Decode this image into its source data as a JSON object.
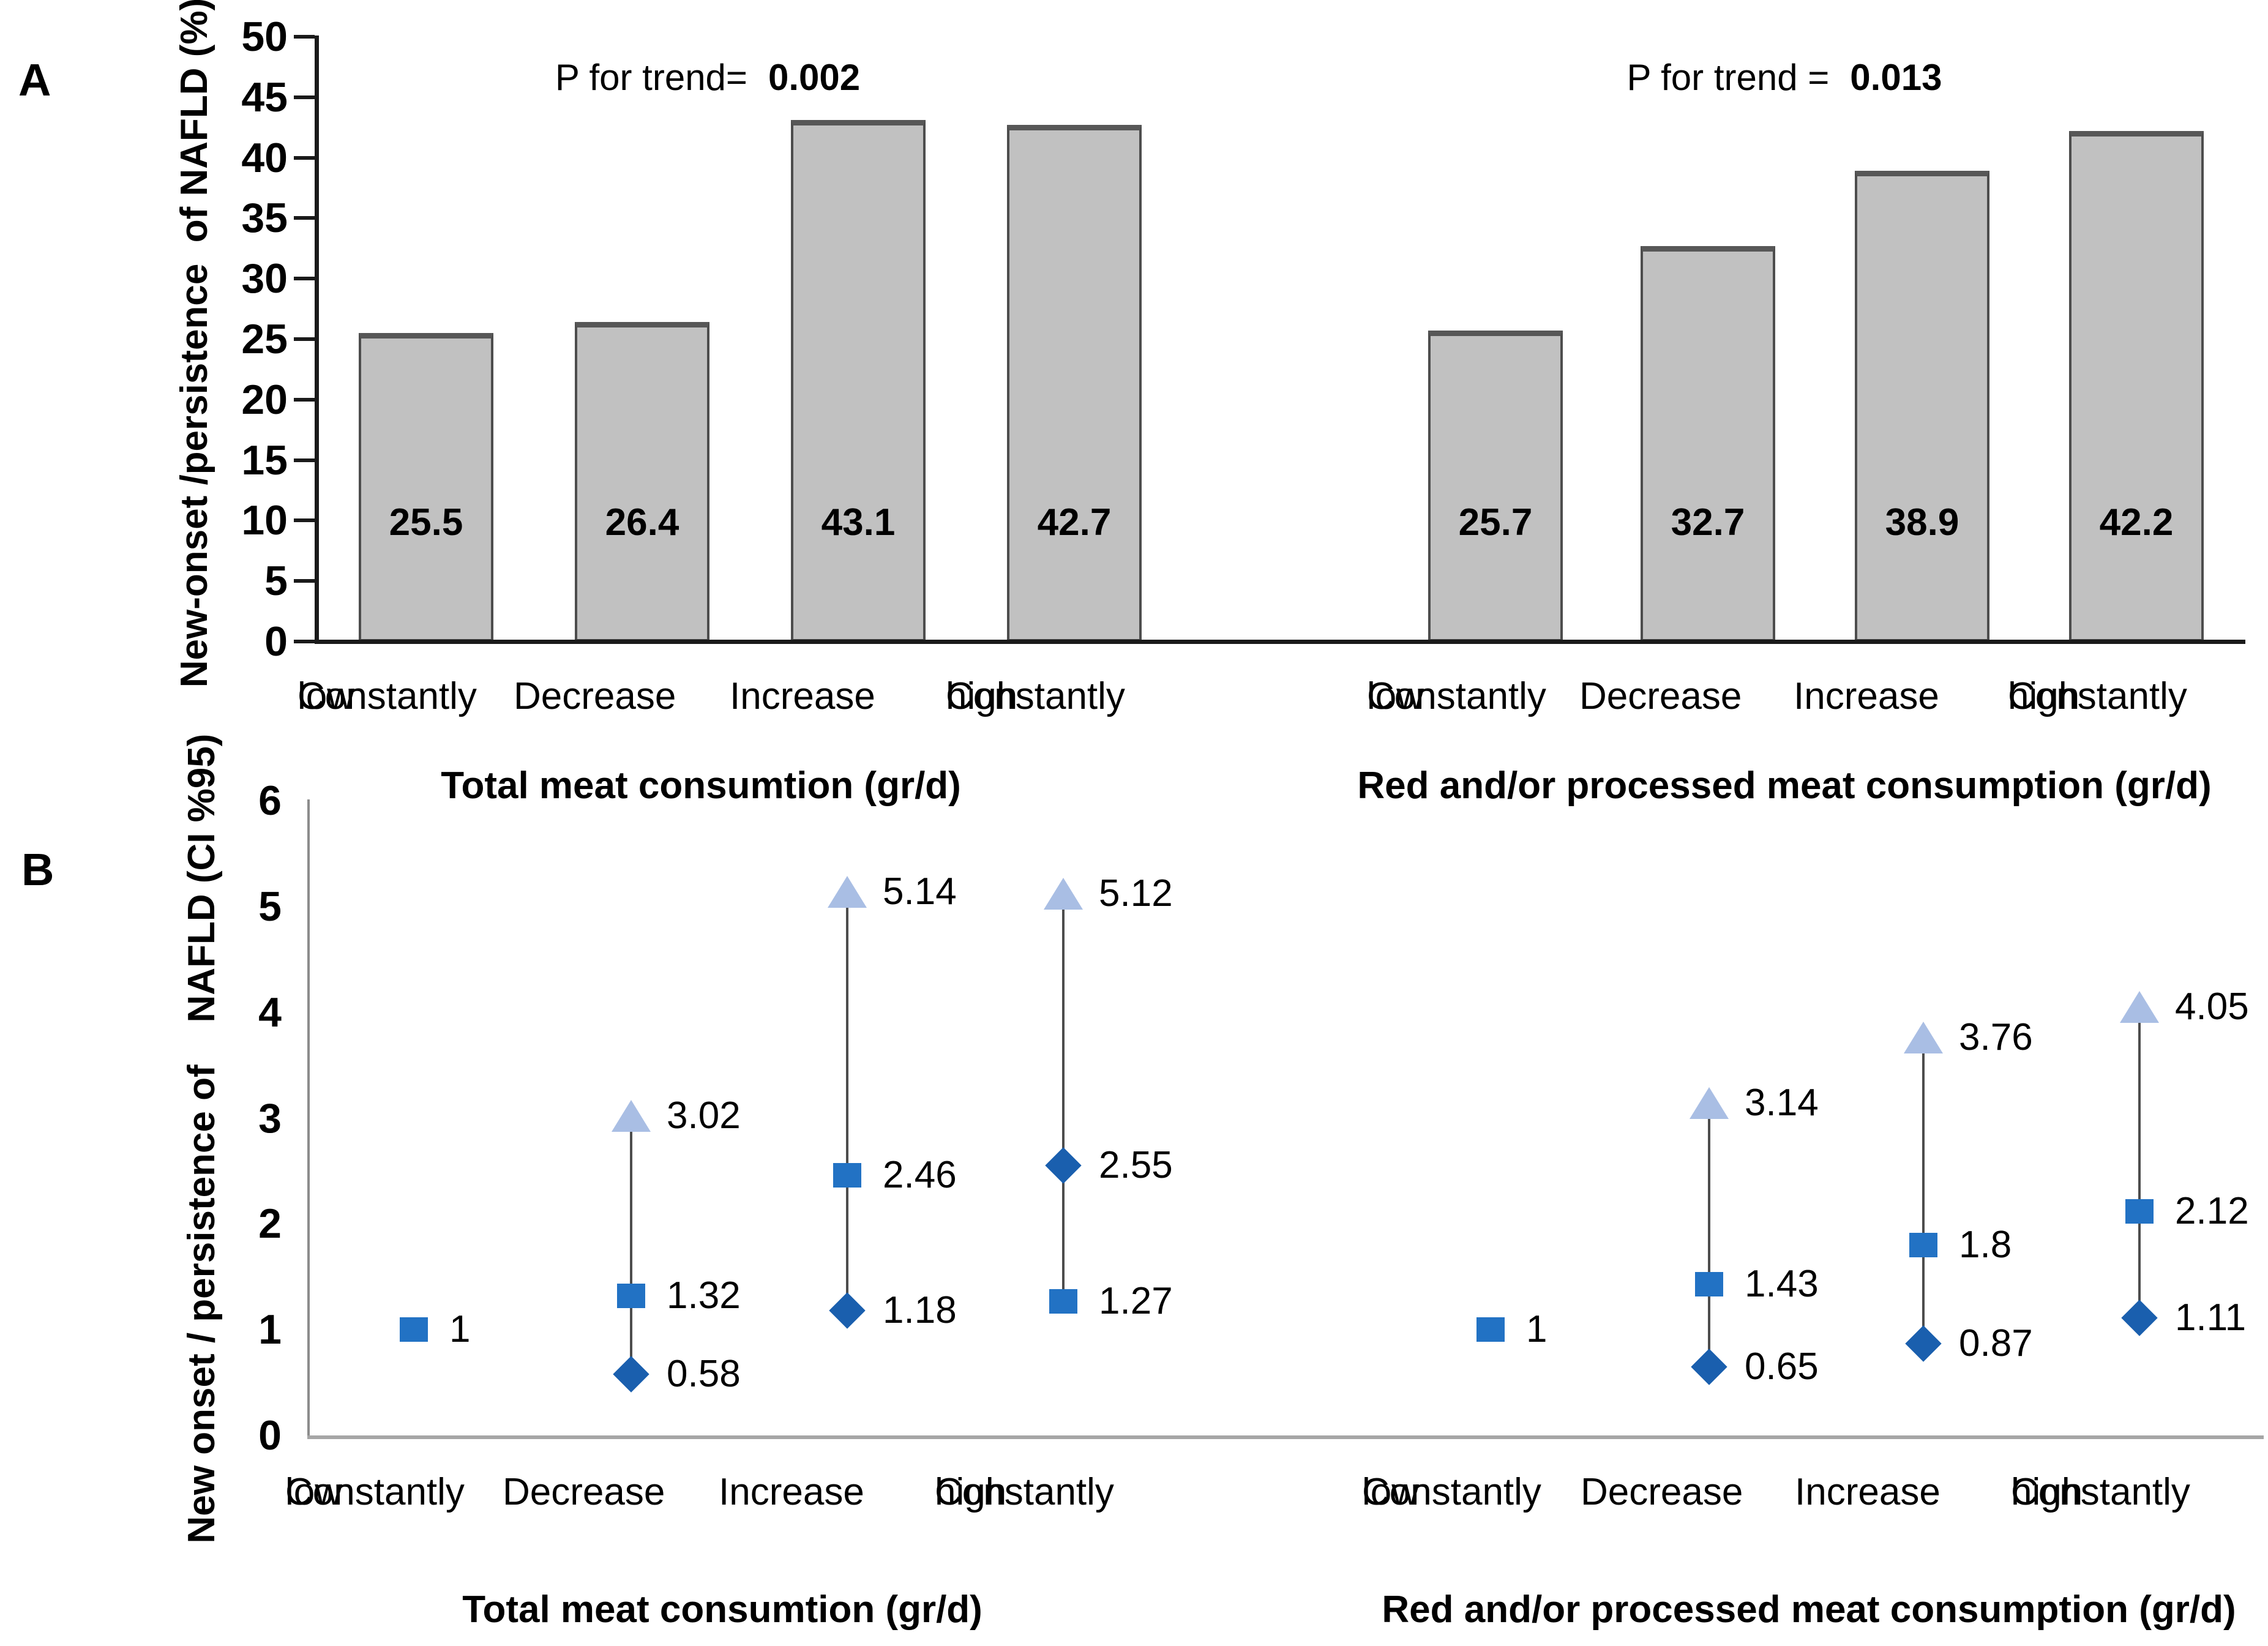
{
  "panel_labels": {
    "a": "A",
    "b": "B"
  },
  "axes": {
    "a_ticks": [
      0,
      5,
      10,
      15,
      20,
      25,
      30,
      35,
      40,
      45,
      50
    ],
    "b_ticks": [
      0,
      1,
      2,
      3,
      4,
      5,
      6
    ]
  },
  "colors": {
    "bar_fill": "#c1c1c1",
    "bar_border": "#4d4d4d",
    "square": "#2272C4",
    "diamond": "#1A5FAE",
    "triangle": "#A9BEE4",
    "ci_line": "#4d4d4d",
    "axis_black": "#1a1a1a",
    "axis_gray": "#9a9a9a",
    "baseline_gray": "#a6a6a6"
  },
  "chart_data": [
    {
      "type": "bar",
      "panel": "A",
      "p_label": "P for trend=",
      "p_value": "0.002",
      "title": "",
      "xlabel": "Total meat consumtion (gr/d)",
      "ylabel": "New-onset /persistence  of NAFLD (%)",
      "ylim": [
        0,
        50
      ],
      "grid": false,
      "categories": [
        [
          "Constantly",
          "low"
        ],
        [
          "Decrease"
        ],
        [
          "Increase"
        ],
        [
          "Constantly",
          "high"
        ]
      ],
      "values": [
        25.5,
        26.4,
        43.1,
        42.7
      ]
    },
    {
      "type": "bar",
      "panel": "A",
      "p_label": "P for trend =",
      "p_value": "0.013",
      "title": "",
      "xlabel": "Red and/or processed meat consumption (gr/d)",
      "ylabel": "New-onset /persistence  of NAFLD (%)",
      "ylim": [
        0,
        50
      ],
      "grid": false,
      "categories": [
        [
          "Constantly",
          "low"
        ],
        [
          "Decrease"
        ],
        [
          "Increase"
        ],
        [
          "Constantly",
          "high"
        ]
      ],
      "values": [
        25.7,
        32.7,
        38.9,
        42.2
      ]
    },
    {
      "type": "scatter-ci",
      "panel": "B",
      "xlabel": "Total meat consumtion (gr/d)",
      "ylabel": "New onset / persistence of    NAFLD (CI %95)",
      "ylim": [
        0,
        6
      ],
      "grid": false,
      "categories": [
        [
          "Constantly",
          "low"
        ],
        [
          "Decrease"
        ],
        [
          "Increase"
        ],
        [
          "Constantly",
          "high"
        ]
      ],
      "points": [
        {
          "markers": [
            {
              "shape": "square",
              "value": 1,
              "label": "1"
            }
          ]
        },
        {
          "line": [
            0.58,
            3.02
          ],
          "markers": [
            {
              "shape": "triangle",
              "value": 3.02,
              "label": "3.02"
            },
            {
              "shape": "square",
              "value": 1.32,
              "label": "1.32"
            },
            {
              "shape": "diamond",
              "value": 0.58,
              "label": "0.58"
            }
          ]
        },
        {
          "line": [
            1.18,
            5.14
          ],
          "markers": [
            {
              "shape": "triangle",
              "value": 5.14,
              "label": "5.14"
            },
            {
              "shape": "square",
              "value": 2.46,
              "label": "2.46"
            },
            {
              "shape": "diamond",
              "value": 1.18,
              "label": "1.18"
            }
          ]
        },
        {
          "line": [
            1.27,
            5.12
          ],
          "markers": [
            {
              "shape": "triangle",
              "value": 5.12,
              "label": "5.12"
            },
            {
              "shape": "diamond",
              "value": 2.55,
              "label": "2.55"
            },
            {
              "shape": "square",
              "value": 1.27,
              "label": "1.27"
            }
          ]
        }
      ]
    },
    {
      "type": "scatter-ci",
      "panel": "B",
      "xlabel": "Red and/or processed meat consumption (gr/d)",
      "ylabel": "New onset / persistence of    NAFLD (CI %95)",
      "ylim": [
        0,
        6
      ],
      "grid": false,
      "categories": [
        [
          "Constantly",
          "low"
        ],
        [
          "Decrease"
        ],
        [
          "Increase"
        ],
        [
          "Constantly",
          "high"
        ]
      ],
      "points": [
        {
          "markers": [
            {
              "shape": "square",
              "value": 1,
              "label": "1"
            }
          ]
        },
        {
          "line": [
            0.65,
            3.14
          ],
          "markers": [
            {
              "shape": "triangle",
              "value": 3.14,
              "label": "3.14"
            },
            {
              "shape": "square",
              "value": 1.43,
              "label": "1.43"
            },
            {
              "shape": "diamond",
              "value": 0.65,
              "label": "0.65"
            }
          ]
        },
        {
          "line": [
            0.87,
            3.76
          ],
          "markers": [
            {
              "shape": "triangle",
              "value": 3.76,
              "label": "3.76"
            },
            {
              "shape": "square",
              "value": 1.8,
              "label": "1.8"
            },
            {
              "shape": "diamond",
              "value": 0.87,
              "label": "0.87"
            }
          ]
        },
        {
          "line": [
            1.11,
            4.05
          ],
          "markers": [
            {
              "shape": "triangle",
              "value": 4.05,
              "label": "4.05"
            },
            {
              "shape": "square",
              "value": 2.12,
              "label": "2.12"
            },
            {
              "shape": "diamond",
              "value": 1.11,
              "label": "1.11"
            }
          ]
        }
      ]
    }
  ]
}
